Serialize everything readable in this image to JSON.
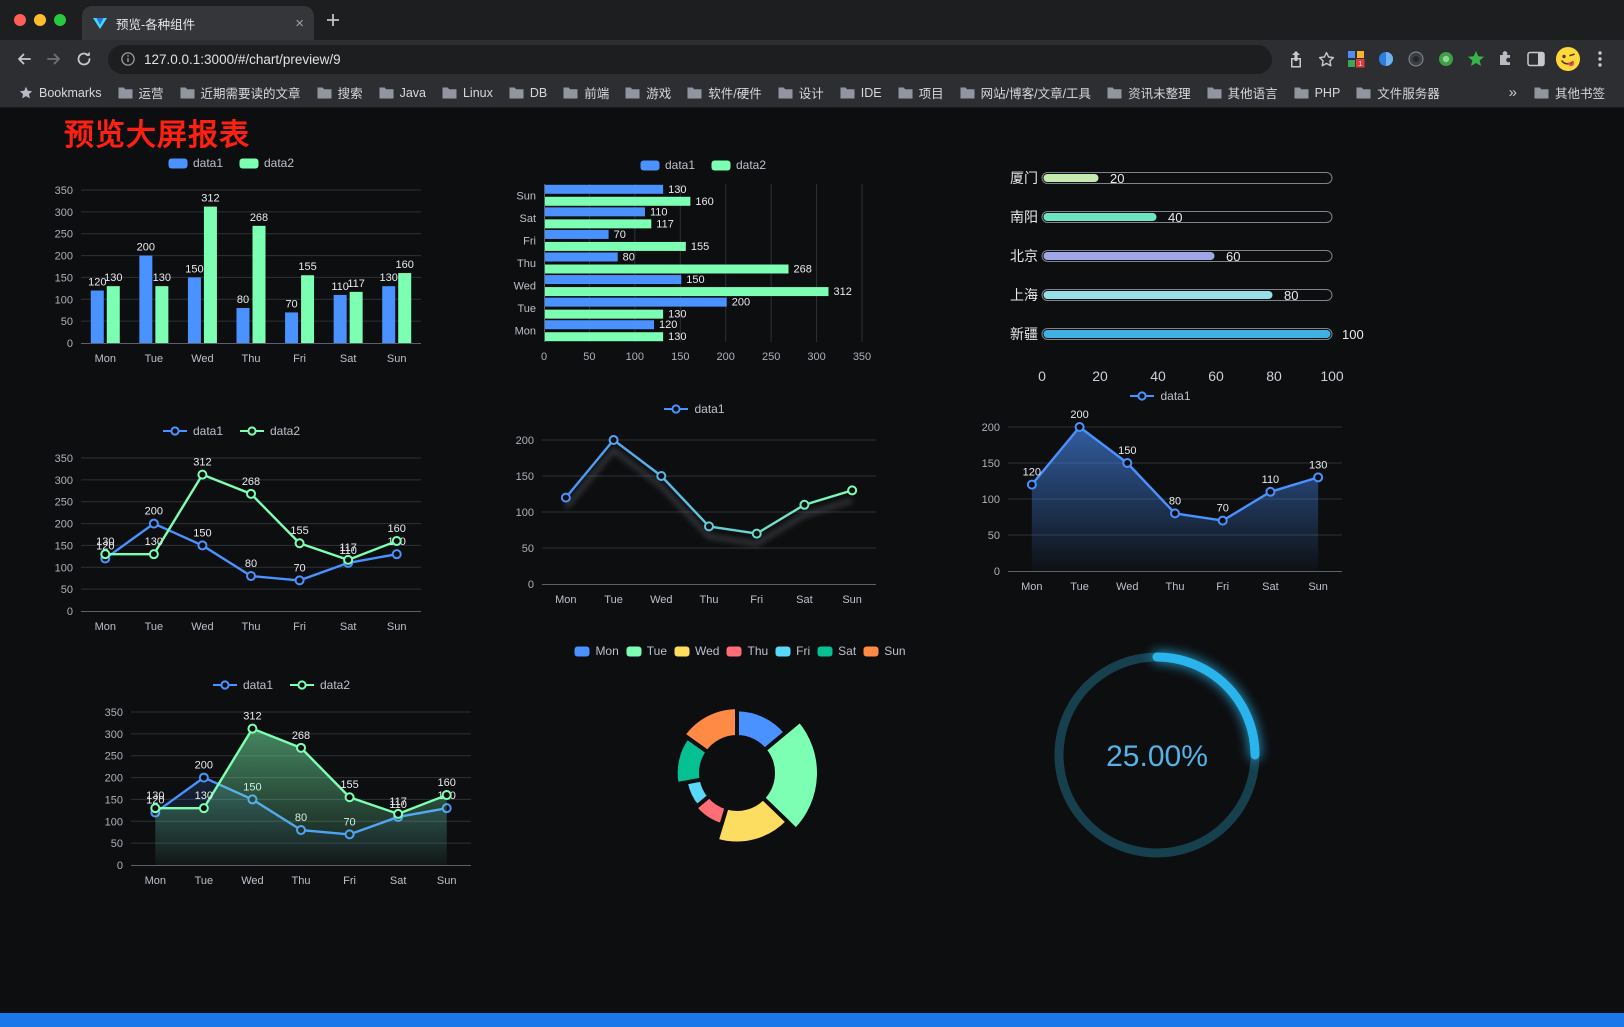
{
  "browser": {
    "tab": {
      "title": "预览-各种组件"
    },
    "url": "127.0.0.1:3000/#/chart/preview/9",
    "bookmarks": [
      "Bookmarks",
      "运营",
      "近期需要读的文章",
      "搜索",
      "Java",
      "Linux",
      "DB",
      "前端",
      "游戏",
      "软件/硬件",
      "设计",
      "IDE",
      "项目",
      "网站/博客/文章/工具",
      "资讯未整理",
      "其他语言",
      "PHP",
      "文件服务器"
    ],
    "bookmarks_overflow": "»",
    "other_bookmarks": "其他书签",
    "icon_names": [
      "close-window",
      "minimize-window",
      "zoom-window",
      "tab-favicon",
      "tab-close",
      "new-tab",
      "back-arrow",
      "forward-arrow",
      "reload",
      "page-info",
      "share",
      "bookmark-star",
      "extension-grid",
      "extension-blue",
      "extension-dark",
      "extension-green",
      "extension-green-star",
      "extensions-puzzle",
      "side-panel",
      "profile-avatar",
      "menu-kebab",
      "bookmark-folder"
    ]
  },
  "page": {
    "title": "预览大屏报表",
    "title_color": "#ff2012",
    "background": "#0d0e10",
    "bottom_bar_color": "#1b78e8"
  },
  "chart_data": [
    {
      "id": "bar-vertical",
      "type": "bar",
      "categories": [
        "Mon",
        "Tue",
        "Wed",
        "Thu",
        "Fri",
        "Sat",
        "Sun"
      ],
      "series": [
        {
          "name": "data1",
          "color": "#4992ff",
          "values": [
            120,
            200,
            150,
            80,
            70,
            110,
            130
          ]
        },
        {
          "name": "data2",
          "color": "#7cffb2",
          "values": [
            130,
            130,
            312,
            268,
            155,
            117,
            160
          ]
        }
      ],
      "ylim": [
        0,
        350
      ],
      "yticks": [
        0,
        50,
        100,
        150,
        200,
        250,
        300,
        350
      ],
      "value_labels": true,
      "grid": true,
      "legend_position": "top"
    },
    {
      "id": "bar-horizontal",
      "type": "hbar",
      "categories": [
        "Mon",
        "Tue",
        "Wed",
        "Thu",
        "Fri",
        "Sat",
        "Sun"
      ],
      "series": [
        {
          "name": "data1",
          "color": "#4992ff",
          "values": [
            120,
            200,
            150,
            80,
            70,
            110,
            130
          ]
        },
        {
          "name": "data2",
          "color": "#7cffb2",
          "values": [
            130,
            130,
            312,
            268,
            155,
            117,
            160
          ]
        }
      ],
      "xlim": [
        0,
        350
      ],
      "xticks": [
        0,
        50,
        100,
        150,
        200,
        250,
        300,
        350
      ],
      "value_labels": true,
      "grid": true,
      "legend_position": "top"
    },
    {
      "id": "progress-bars",
      "type": "progress",
      "max": 100,
      "xticks": [
        0,
        20,
        40,
        60,
        80,
        100
      ],
      "items": [
        {
          "label": "厦门",
          "value": 20,
          "color": "#c4ebad"
        },
        {
          "label": "南阳",
          "value": 40,
          "color": "#6be6c1"
        },
        {
          "label": "北京",
          "value": 60,
          "color": "#a0a7e6"
        },
        {
          "label": "上海",
          "value": 80,
          "color": "#96dee8"
        },
        {
          "label": "新疆",
          "value": 100,
          "color": "#3fb1e3"
        }
      ]
    },
    {
      "id": "line-basic",
      "type": "line",
      "categories": [
        "Mon",
        "Tue",
        "Wed",
        "Thu",
        "Fri",
        "Sat",
        "Sun"
      ],
      "series": [
        {
          "name": "data1",
          "color": "#4992ff",
          "values": [
            120,
            200,
            150,
            80,
            70,
            110,
            130
          ]
        },
        {
          "name": "data2",
          "color": "#7cffb2",
          "values": [
            130,
            130,
            312,
            268,
            155,
            117,
            160
          ]
        }
      ],
      "ylim": [
        0,
        350
      ],
      "yticks": [
        0,
        50,
        100,
        150,
        200,
        250,
        300,
        350
      ],
      "value_labels": true,
      "grid": true,
      "legend_position": "top"
    },
    {
      "id": "line-gradient",
      "type": "line",
      "categories": [
        "Mon",
        "Tue",
        "Wed",
        "Thu",
        "Fri",
        "Sat",
        "Sun"
      ],
      "series": [
        {
          "name": "data1",
          "gradient": [
            "#4992ff",
            "#7cffb2"
          ],
          "values": [
            120,
            200,
            150,
            80,
            70,
            110,
            130
          ]
        }
      ],
      "ylim": [
        0,
        200
      ],
      "yticks": [
        0,
        50,
        100,
        150,
        200
      ],
      "value_labels": false,
      "shadow": true,
      "grid": true,
      "legend_position": "top"
    },
    {
      "id": "line-area",
      "type": "line",
      "categories": [
        "Mon",
        "Tue",
        "Wed",
        "Thu",
        "Fri",
        "Sat",
        "Sun"
      ],
      "series": [
        {
          "name": "data1",
          "color": "#4992ff",
          "area": [
            0.6,
            0.02
          ],
          "values": [
            120,
            200,
            150,
            80,
            70,
            110,
            130
          ]
        }
      ],
      "ylim": [
        0,
        200
      ],
      "yticks": [
        0,
        50,
        100,
        150,
        200
      ],
      "value_labels": true,
      "grid": true,
      "legend_position": "top"
    },
    {
      "id": "line-double-area",
      "type": "line",
      "categories": [
        "Mon",
        "Tue",
        "Wed",
        "Thu",
        "Fri",
        "Sat",
        "Sun"
      ],
      "series": [
        {
          "name": "data1",
          "color": "#4992ff",
          "area": [
            0.16,
            0
          ],
          "values": [
            120,
            200,
            150,
            80,
            70,
            110,
            130
          ]
        },
        {
          "name": "data2",
          "color": "#7cffb2",
          "area": [
            0.5,
            0.04
          ],
          "values": [
            130,
            130,
            312,
            268,
            155,
            117,
            160
          ]
        }
      ],
      "ylim": [
        0,
        350
      ],
      "yticks": [
        0,
        50,
        100,
        150,
        200,
        250,
        300,
        350
      ],
      "value_labels": true,
      "grid": true,
      "legend_position": "top"
    },
    {
      "id": "rose-pie",
      "type": "rose",
      "inner_radius_ratio": 0.44,
      "items": [
        {
          "label": "Mon",
          "value": 120,
          "color": "#4992ff"
        },
        {
          "label": "Tue",
          "value": 200,
          "color": "#7cffb2"
        },
        {
          "label": "Wed",
          "value": 150,
          "color": "#fddd60"
        },
        {
          "label": "Thu",
          "value": 80,
          "color": "#ff6e76"
        },
        {
          "label": "Fri",
          "value": 70,
          "color": "#58d9f9"
        },
        {
          "label": "Sat",
          "value": 110,
          "color": "#05c091"
        },
        {
          "label": "Sun",
          "value": 130,
          "color": "#ff8a45"
        }
      ],
      "legend_position": "top"
    },
    {
      "id": "gauge-ring",
      "type": "gauge",
      "label": "25.00%",
      "percent": 25,
      "color": "#2ab4ec",
      "track_color": "#17404f",
      "text_color": "#55b1e6"
    }
  ]
}
